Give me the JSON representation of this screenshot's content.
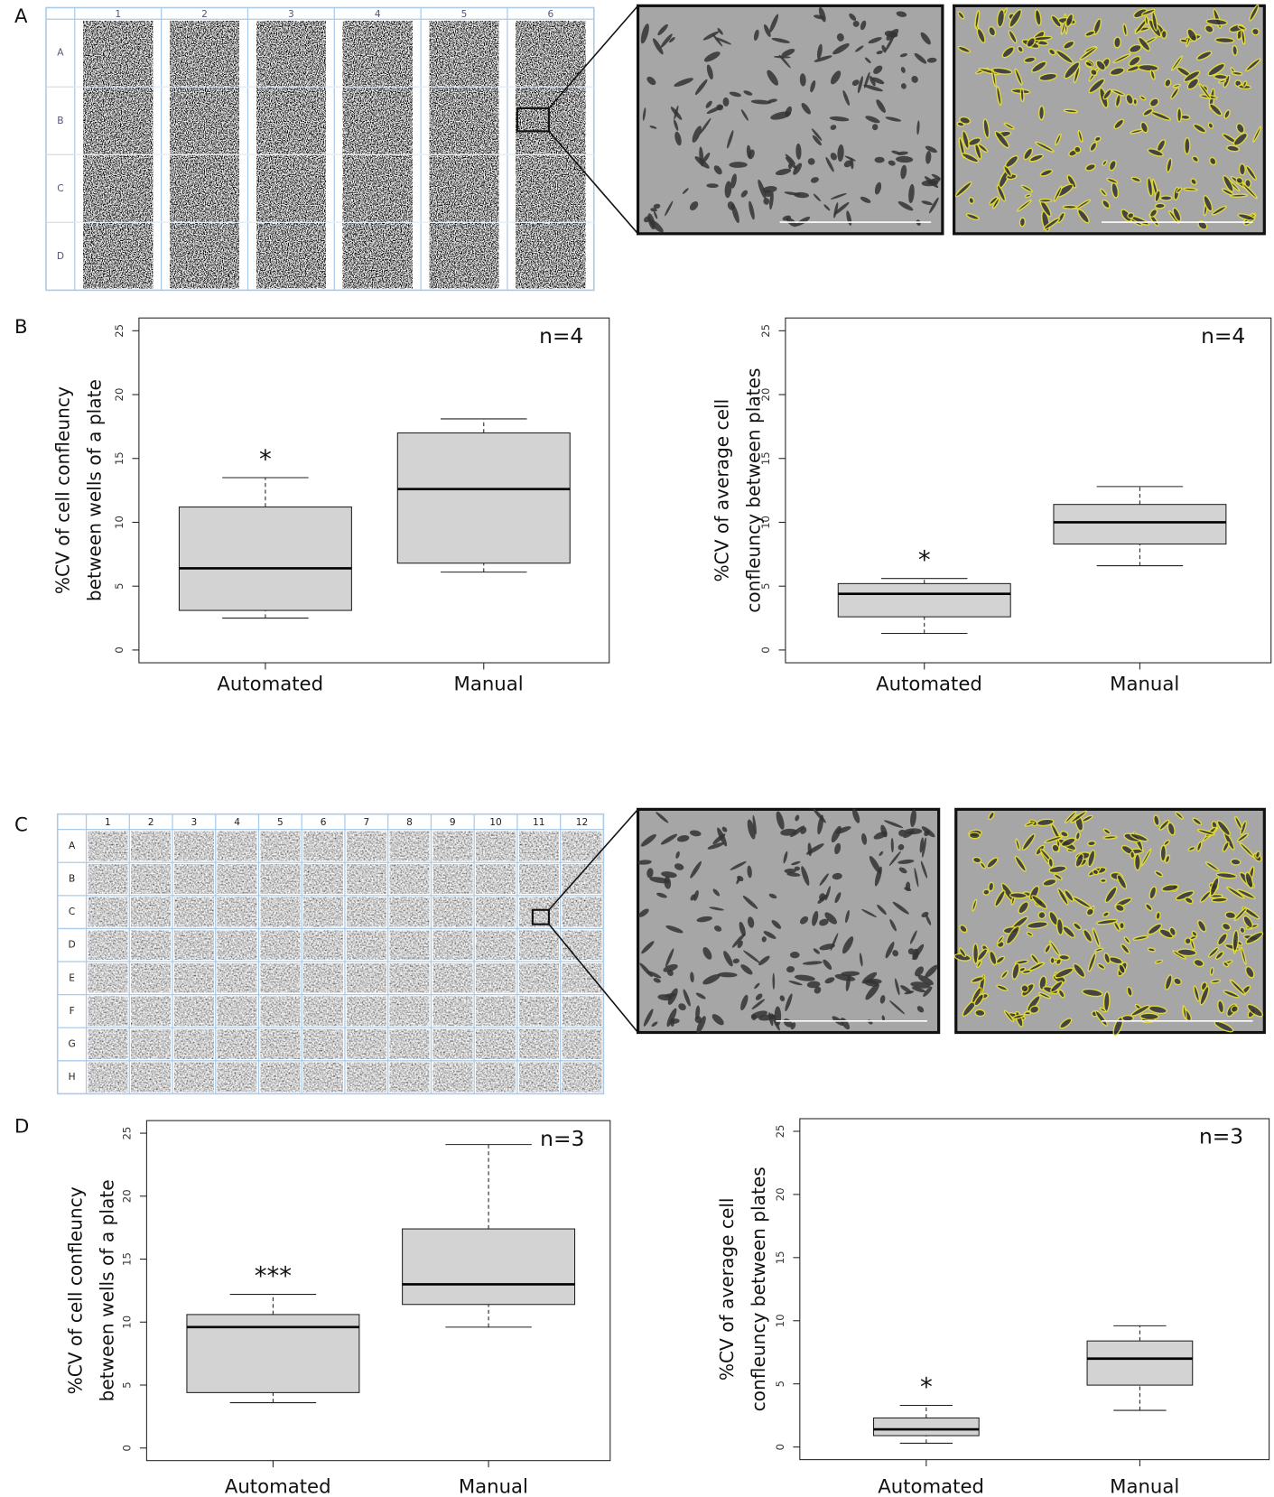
{
  "figure": {
    "panel_labels": [
      "A",
      "B",
      "C",
      "D"
    ],
    "plate_a": {
      "columns": [
        "1",
        "2",
        "3",
        "4",
        "5",
        "6"
      ],
      "rows": [
        "A",
        "B",
        "C",
        "D"
      ]
    },
    "plate_c": {
      "columns": [
        "1",
        "2",
        "3",
        "4",
        "5",
        "6",
        "7",
        "8",
        "9",
        "10",
        "11",
        "12"
      ],
      "rows": [
        "A",
        "B",
        "C",
        "D",
        "E",
        "F",
        "G",
        "H"
      ]
    }
  },
  "chart_data": [
    {
      "type": "box",
      "ylabel": [
        "%CV of  cell confleuncy",
        "between wells of a plate"
      ],
      "categories": [
        "Automated",
        "Manual"
      ],
      "boxes": [
        {
          "low": 2.5,
          "q1": 3.1,
          "median": 6.4,
          "q3": 11.2,
          "high": 13.5
        },
        {
          "low": 6.1,
          "q1": 6.8,
          "median": 12.6,
          "q3": 17.0,
          "high": 18.1
        }
      ],
      "annotation": "*",
      "sample_size_label": "n=4",
      "ylim": [
        -1,
        26
      ],
      "yticks": [
        0,
        5,
        10,
        15,
        20,
        25
      ],
      "color": "#d3d3d3"
    },
    {
      "type": "box",
      "ylabel": [
        "%CV of average cell",
        "confleuncy between plates"
      ],
      "categories": [
        "Automated",
        "Manual"
      ],
      "boxes": [
        {
          "low": 1.3,
          "q1": 2.6,
          "median": 4.4,
          "q3": 5.2,
          "high": 5.6
        },
        {
          "low": 6.6,
          "q1": 8.3,
          "median": 10.0,
          "q3": 11.4,
          "high": 12.8
        }
      ],
      "annotation": "*",
      "sample_size_label": "n=4",
      "ylim": [
        -1,
        26
      ],
      "yticks": [
        0,
        5,
        10,
        15,
        20,
        25
      ],
      "color": "#d3d3d3"
    },
    {
      "type": "box",
      "ylabel": [
        "%CV of  cell confleuncy",
        "between wells of a plate"
      ],
      "categories": [
        "Automated",
        "Manual"
      ],
      "boxes": [
        {
          "low": 3.6,
          "q1": 4.4,
          "median": 9.6,
          "q3": 10.6,
          "high": 12.2
        },
        {
          "low": 9.6,
          "q1": 11.4,
          "median": 13.0,
          "q3": 17.4,
          "high": 24.1
        }
      ],
      "annotation": "***",
      "sample_size_label": "n=3",
      "ylim": [
        -1,
        26
      ],
      "yticks": [
        0,
        5,
        10,
        15,
        20,
        25
      ],
      "color": "#d3d3d3"
    },
    {
      "type": "box",
      "ylabel": [
        "%CV of average cell",
        "confleuncy between plates"
      ],
      "categories": [
        "Automated",
        "Manual"
      ],
      "boxes": [
        {
          "low": 0.3,
          "q1": 0.9,
          "median": 1.4,
          "q3": 2.3,
          "high": 3.3
        },
        {
          "low": 2.9,
          "q1": 4.9,
          "median": 7.0,
          "q3": 8.4,
          "high": 9.6
        }
      ],
      "annotation": "*",
      "sample_size_label": "n=3",
      "ylim": [
        -1,
        26
      ],
      "yticks": [
        0,
        5,
        10,
        15,
        20,
        25
      ],
      "color": "#d3d3d3"
    }
  ]
}
